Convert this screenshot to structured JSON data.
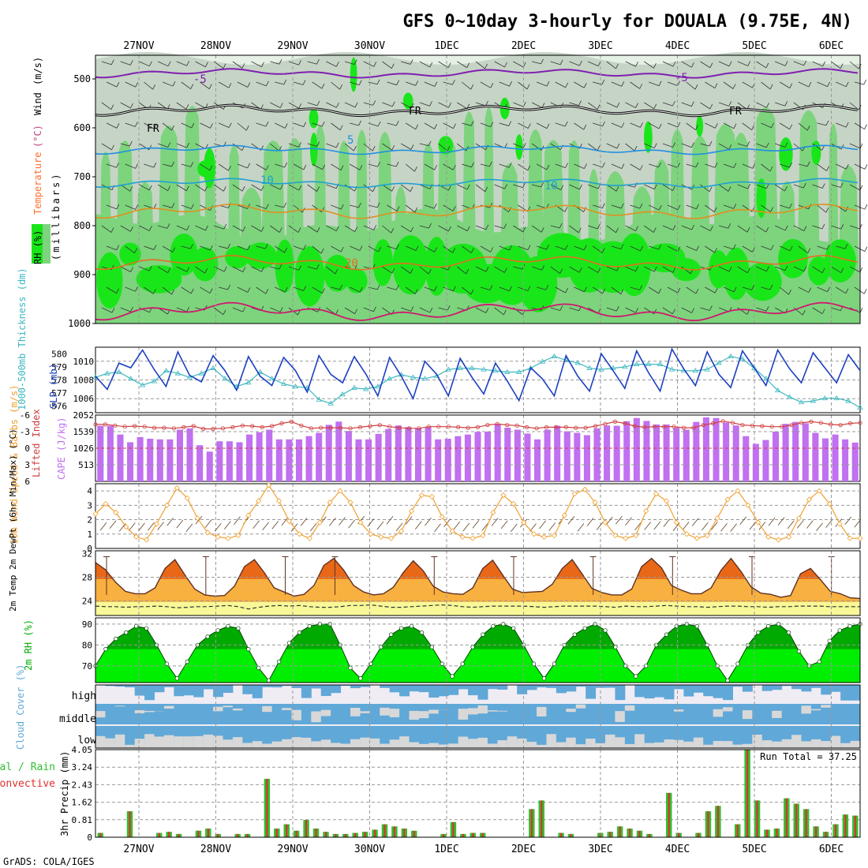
{
  "title": "GFS 0~10day 3-hourly for DOUALA (9.75E, 4N)",
  "footer": "GrADS: COLA/IGES",
  "date_labels": [
    "27NOV",
    "28NOV",
    "29NOV",
    "30NOV",
    "1DEC",
    "2DEC",
    "3DEC",
    "4DEC",
    "5DEC",
    "6DEC"
  ],
  "colors": {
    "rh_light": "#e4f1e4",
    "rh_grey": "#c6d4c6",
    "rh_mid": "#7dd47d",
    "rh_bright": "#19e619",
    "thickness": "#3eb8c0",
    "slp": "#1c3fc0",
    "lifted_index": "#d04040",
    "cape": "#c070f0",
    "wind_speed": "#f0a030",
    "temp_dark": "#e86818",
    "temp_light": "#f8b040",
    "dewpoint_fill": "#f8f898",
    "rh2m_dark": "#00aa00",
    "rh2m_light": "#00ee00",
    "cloud": "#60a8d8",
    "cloud_clear": "#d8d8d8",
    "precip_total": "#30c030",
    "precip_conv": "#e03030"
  },
  "chart_data": [
    {
      "type": "heatmap",
      "name": "pressure-cross-section",
      "panel_labels": [
        "RH (%)",
        "Temperature",
        "(°C)",
        "Wind",
        "(m/s)",
        "(millibars)"
      ],
      "y_ticks": [
        "500",
        "600",
        "700",
        "800",
        "900",
        "1000"
      ],
      "ylim": [
        1000,
        450
      ],
      "isotherm_labels": [
        {
          "text": "-5",
          "level": "upper"
        },
        {
          "text": "FR",
          "level": "freezing"
        },
        {
          "text": "5",
          "level": "mid"
        },
        {
          "text": "10",
          "level": "mid"
        },
        {
          "text": "20",
          "level": "low"
        }
      ]
    },
    {
      "type": "line",
      "name": "thickness-slp",
      "y_left_label": "1000-500mb Thickness (dm)",
      "y_right_label": "SLP (mb)",
      "y_left_ticks": [
        "580",
        "579",
        "578",
        "577",
        "576"
      ],
      "y_right_ticks": [
        "1010",
        "1008",
        "1006"
      ],
      "ylim_left": [
        575.5,
        580.5
      ],
      "ylim_right": [
        1004.5,
        1011.5
      ],
      "series": [
        {
          "name": "SLP",
          "axis": "right",
          "values": [
            1008.4,
            1007,
            1009.8,
            1009.3,
            1011.2,
            1009.1,
            1007.3,
            1011,
            1008.5,
            1007.8,
            1010.6,
            1009,
            1006.9,
            1010.5,
            1008.4,
            1007.4,
            1010.4,
            1009,
            1006.7,
            1010.6,
            1008.6,
            1007.7,
            1010.5,
            1008.6,
            1006.3,
            1010.4,
            1008.4,
            1006,
            1010,
            1008.6,
            1006.3,
            1010.3,
            1008.3,
            1006.5,
            1009.8,
            1007.9,
            1005.8,
            1009.3,
            1008.1,
            1006.3,
            1010.6,
            1008.4,
            1006.8,
            1010.8,
            1009,
            1007.1,
            1011.1,
            1008.8,
            1006.8,
            1011.3,
            1009.2,
            1007.4,
            1011,
            1008.6,
            1007.2,
            1011.1,
            1009.3,
            1007.4,
            1011.2,
            1009.2,
            1007.7,
            1010.9,
            1009.3,
            1007.7,
            1010.7,
            1009
          ]
        },
        {
          "name": "Thickness",
          "axis": "left",
          "values": [
            578.2,
            578.5,
            578.6,
            578.1,
            577.6,
            577.9,
            578.7,
            578.5,
            578.2,
            578.5,
            578.9,
            578.1,
            577.5,
            577.8,
            578.6,
            578.1,
            577.7,
            577.5,
            577.4,
            576.5,
            576.2,
            576.9,
            577.4,
            577.3,
            577.5,
            578.1,
            578.4,
            578.2,
            578.1,
            578.3,
            578.8,
            578.9,
            578.9,
            578.8,
            578.7,
            578.6,
            578.6,
            578.9,
            579.4,
            579.8,
            579.5,
            579.3,
            578.9,
            578.8,
            578.9,
            579,
            579.2,
            579.2,
            579.2,
            578.8,
            578.7,
            578.7,
            578.8,
            579.3,
            579.8,
            579.6,
            578.9,
            578.1,
            577.2,
            576.7,
            576.3,
            576.4,
            576.6,
            576.6,
            576.4,
            575.9
          ]
        }
      ]
    },
    {
      "type": "bar",
      "name": "lifted-index-cape",
      "y_left_label": "Lifted Index",
      "y_right_label": "CAPE (J/kg)",
      "y_left_ticks": [
        "-6",
        "-3",
        "0",
        "3",
        "6"
      ],
      "y_right_ticks": [
        "2052",
        "1539",
        "1026",
        "513"
      ],
      "ylim_left": [
        -6,
        6
      ],
      "ylim_right": [
        0,
        2052
      ],
      "series": [
        {
          "name": "CAPE",
          "axis": "right",
          "values": [
            1720,
            1720,
            1450,
            1210,
            1370,
            1320,
            1300,
            1300,
            1600,
            1640,
            1120,
            920,
            1240,
            1240,
            1210,
            1450,
            1520,
            1600,
            1300,
            1300,
            1300,
            1400,
            1500,
            1750,
            1850,
            1560,
            1300,
            1300,
            1470,
            1620,
            1730,
            1680,
            1640,
            1680,
            1300,
            1320,
            1400,
            1450,
            1530,
            1540,
            1770,
            1660,
            1600,
            1480,
            1300,
            1600,
            1720,
            1550,
            1500,
            1430,
            1640,
            1730,
            1720,
            1860,
            1960,
            1870,
            1760,
            1760,
            1660,
            1600,
            1840,
            1980,
            1960,
            1820,
            1730,
            1400,
            1160,
            1280,
            1540,
            1780,
            1840,
            1800,
            1500,
            1330,
            1450,
            1300,
            1200
          ]
        },
        {
          "name": "Lifted Index",
          "axis": "left",
          "values": [
            -4.3,
            -4.3,
            -4.1,
            -3.9,
            -4.0,
            -3.9,
            -3.7,
            -3.7,
            -3.6,
            -3.8,
            -4.0,
            -3.5,
            -3.5,
            -3.6,
            -3.8,
            -4.1,
            -4.0,
            -3.8,
            -4.0,
            -4.5,
            -4.8,
            -4.1,
            -3.6,
            -3.7,
            -3.7,
            -3.7,
            -3.6,
            -3.8,
            -4.0,
            -4.2,
            -3.9,
            -3.7,
            -3.6,
            -3.6,
            -3.9,
            -3.9,
            -3.9,
            -3.8,
            -3.7,
            -3.8,
            -4.2,
            -4.4,
            -4.2,
            -4.1,
            -3.8,
            -3.6,
            -3.8,
            -3.8,
            -3.8,
            -3.7,
            -3.7,
            -4.0,
            -4.4,
            -4.8,
            -4.5,
            -4.0,
            -3.8,
            -3.9,
            -3.9,
            -3.9,
            -3.7,
            -3.7,
            -4.2,
            -4.5,
            -4.9,
            -4.6,
            -4.2,
            -4.1,
            -4.0,
            -3.9,
            -3.9,
            -4.2,
            -4.6,
            -4.8,
            -4.6,
            -4.3,
            -4.2,
            -4.5,
            -4.6
          ]
        }
      ]
    },
    {
      "type": "line",
      "name": "wind-10m",
      "y_label": "10m Wind Speed & Barbs (m/s)",
      "y_ticks": [
        "4",
        "3",
        "2",
        "1",
        "0"
      ],
      "ylim": [
        0,
        4.5
      ],
      "series": [
        {
          "name": "10m Wind Speed",
          "values": [
            2.4,
            3.1,
            2.5,
            1.5,
            0.8,
            0.6,
            1.7,
            3,
            4.2,
            3.5,
            2.1,
            1.1,
            0.8,
            0.7,
            0.9,
            2.3,
            3.3,
            4.4,
            3.3,
            1.9,
            1,
            0.7,
            1.8,
            3.2,
            4,
            3.2,
            1.8,
            1,
            0.8,
            0.7,
            1.2,
            2.6,
            3.7,
            3.6,
            2.2,
            1.2,
            0.8,
            0.7,
            0.9,
            2.5,
            3.7,
            3.1,
            1.8,
            1,
            0.8,
            0.9,
            2.3,
            3.8,
            4.1,
            3.2,
            1.8,
            0.9,
            0.7,
            0.9,
            2.6,
            3.8,
            3.3,
            1.8,
            1,
            0.7,
            0.9,
            2.1,
            3.4,
            4,
            3,
            1.8,
            0.8,
            0.6,
            0.8,
            2.1,
            3.4,
            4,
            3.1,
            1.7,
            0.7,
            0.7
          ]
        }
      ]
    },
    {
      "type": "area",
      "name": "temp-2m",
      "y_label": "2m Temp 2m DewPt (6hr Min/Max) (°C)",
      "y_ticks": [
        "32",
        "28",
        "24"
      ],
      "ylim": [
        21.5,
        32.5
      ],
      "series": [
        {
          "name": "2m Temp",
          "values": [
            30.5,
            29.3,
            27.2,
            25.6,
            25.2,
            25.2,
            26.2,
            29.5,
            31,
            28.4,
            26,
            25,
            24.8,
            24.9,
            26.5,
            29.8,
            31,
            28.8,
            26.2,
            25.5,
            24.8,
            25.1,
            26.6,
            30,
            31.2,
            29.2,
            26.6,
            25.5,
            25,
            25.2,
            26.3,
            28.8,
            30.8,
            29.1,
            26.5,
            25.5,
            25.2,
            25.1,
            26.2,
            29.5,
            30.9,
            28.4,
            26,
            25.4,
            25.5,
            25.6,
            26.8,
            29.5,
            31,
            28.6,
            26.1,
            25.4,
            25,
            25,
            26,
            29.8,
            31.2,
            29.6,
            26.6,
            25.8,
            25.2,
            25.2,
            26.2,
            29.2,
            31.2,
            29,
            26.4,
            25.3,
            25.1,
            24.6,
            24.9,
            28.6,
            29.5,
            27.6,
            25.6,
            25.2,
            24.5,
            24.4
          ]
        },
        {
          "name": "2m DewPt",
          "values": [
            23.1,
            23,
            23,
            22.9,
            23,
            23,
            23.1,
            23,
            22.8,
            22.9,
            23,
            23,
            23.1,
            23.2,
            23,
            22.6,
            22.9,
            23.1,
            23.2,
            23.1,
            23.2,
            23,
            22.9,
            22.9,
            23,
            23.2,
            23.2,
            23.3,
            23.1,
            22.9,
            22.9,
            23,
            23.1,
            23.2,
            23.3,
            23.2,
            23,
            22.9,
            23,
            23.1,
            23.1,
            23.1,
            23.1,
            23,
            22.9,
            23,
            23.1,
            23.1,
            23.1,
            23.1,
            23,
            22.9,
            23.1,
            23,
            23,
            23.1,
            23.2,
            23.1,
            23,
            23,
            22.9,
            23,
            23.1,
            23.1,
            23,
            23,
            22.9,
            23,
            23,
            23.1,
            23.1,
            23.1,
            23,
            23,
            23,
            23
          ]
        }
      ]
    },
    {
      "type": "area",
      "name": "rh-2m",
      "y_label": "2m RH (%)",
      "y_ticks": [
        "90",
        "80",
        "70"
      ],
      "ylim": [
        62,
        93
      ],
      "series": [
        {
          "name": "2m RH",
          "values": [
            70,
            78,
            83,
            86,
            89,
            88,
            80,
            71,
            64,
            72,
            80,
            84,
            87,
            89,
            88,
            78,
            69,
            63,
            72,
            81,
            86,
            89,
            90,
            90,
            80,
            69,
            64,
            71,
            79,
            85,
            88,
            89,
            86,
            79,
            71,
            65,
            71,
            79,
            85,
            89,
            90,
            88,
            80,
            71,
            64,
            71,
            80,
            85,
            88,
            90,
            87,
            79,
            70,
            65,
            70,
            80,
            85,
            89,
            90,
            89,
            80,
            70,
            63,
            71,
            80,
            86,
            89,
            90,
            86,
            77,
            70,
            72,
            82,
            87,
            89,
            90
          ]
        }
      ]
    },
    {
      "type": "heatmap",
      "name": "cloud-cover",
      "y_label": "Cloud Cover (%)",
      "layers": [
        "high",
        "middle",
        "low"
      ]
    },
    {
      "type": "bar",
      "name": "precip-3hr",
      "y_label": "3hr Precip (mm)",
      "legend": [
        "Total / Rain",
        "Convective"
      ],
      "annotation": "Run Total = 37.25",
      "y_ticks": [
        "4.05",
        "3.24",
        "2.43",
        "1.62",
        "0.81",
        "0"
      ],
      "ylim": [
        0,
        4.05
      ],
      "series": [
        {
          "name": "Total",
          "values": [
            0.2,
            0,
            0,
            1.2,
            0,
            0,
            0.2,
            0.25,
            0.15,
            0,
            0.3,
            0.4,
            0.15,
            0,
            0.15,
            0.15,
            0,
            2.7,
            0.4,
            0.6,
            0.3,
            0.8,
            0.4,
            0.25,
            0.15,
            0.15,
            0.2,
            0.25,
            0.35,
            0.6,
            0.5,
            0.4,
            0.3,
            0,
            0,
            0.15,
            0.7,
            0.15,
            0.2,
            0.2,
            0,
            0,
            0,
            0,
            1.3,
            1.7,
            0,
            0.2,
            0.15,
            0,
            0,
            0.2,
            0.25,
            0.5,
            0.4,
            0.3,
            0.15,
            0,
            2.05,
            0.2,
            0,
            0.2,
            1.2,
            1.45,
            0,
            0.6,
            4.05,
            1.7,
            0.35,
            0.4,
            1.8,
            1.55,
            1.3,
            0.5,
            0.25,
            0.6,
            1.05,
            1
          ]
        }
      ]
    }
  ]
}
